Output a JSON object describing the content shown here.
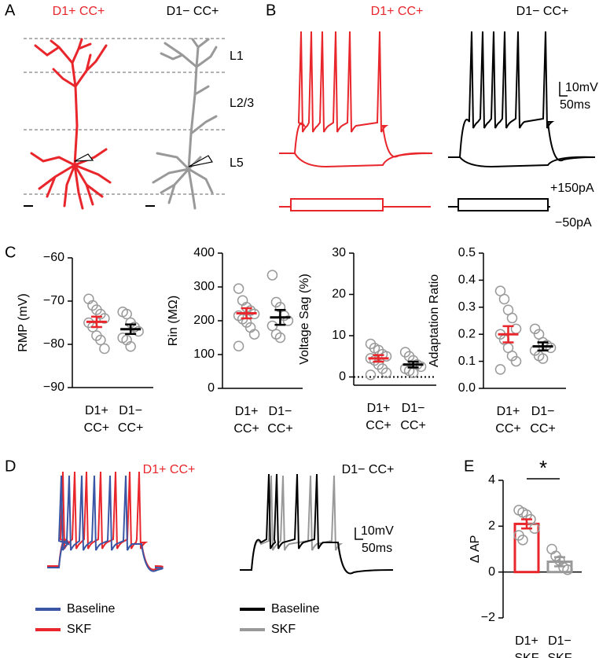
{
  "panel_labels": [
    "A",
    "B",
    "C",
    "D",
    "E"
  ],
  "panel_a": {
    "titles": [
      "D1+ CC+",
      "D1− CC+"
    ],
    "layers": [
      "L1",
      "L2/3",
      "L5"
    ]
  },
  "panel_b": {
    "titles": [
      "D1+ CC+",
      "D1− CC+"
    ],
    "scale_bar": [
      "10mV",
      "50ms"
    ],
    "currents": [
      "+150pA",
      "−50pA"
    ]
  },
  "panel_d": {
    "titles": [
      "D1+ CC+",
      "D1− CC+"
    ],
    "scale_bar": [
      "10mV",
      "50ms"
    ],
    "legends": [
      [
        {
          "name": "Baseline",
          "color": "#3a56a5"
        },
        {
          "name": "SKF",
          "color": "#e8262b"
        }
      ],
      [
        {
          "name": "Baseline",
          "color": "#000000"
        },
        {
          "name": "SKF",
          "color": "#999999"
        }
      ]
    ]
  },
  "chart_data": [
    {
      "type": "strip",
      "ylabel": "RMP (mV)",
      "ylim": [
        -90,
        -60
      ],
      "yticks": [
        {
          "value": -90,
          "label": "−90"
        },
        {
          "value": -80,
          "label": "−80"
        },
        {
          "value": -70,
          "label": "−70"
        },
        {
          "value": -60,
          "label": "−60"
        }
      ],
      "categories": [
        [
          "D1+",
          "CC+"
        ],
        [
          "D1−",
          "CC+"
        ]
      ],
      "groups": [
        {
          "color": "#e8262b",
          "point_color": "#999999",
          "values": [
            -69.5,
            -71,
            -72,
            -73,
            -74,
            -75,
            -76,
            -78,
            -79,
            -81
          ],
          "mean": -74.8,
          "sem": 1.2
        },
        {
          "color": "#000000",
          "point_color": "#999999",
          "values": [
            -72.5,
            -73,
            -75,
            -76,
            -77,
            -78.5,
            -79,
            -80.5
          ],
          "mean": -76.5,
          "sem": 1.1
        }
      ]
    },
    {
      "type": "strip",
      "ylabel": "Rin (MΩ)",
      "ylim": [
        0,
        400
      ],
      "yticks": [
        0,
        100,
        200,
        300,
        400
      ],
      "categories": [
        [
          "D1+",
          "CC+"
        ],
        [
          "D1−",
          "CC+"
        ]
      ],
      "groups": [
        {
          "color": "#e8262b",
          "point_color": "#999999",
          "values": [
            295,
            260,
            240,
            230,
            220,
            215,
            205,
            195,
            180,
            160,
            125
          ],
          "mean": 222,
          "sem": 15
        },
        {
          "color": "#000000",
          "point_color": "#999999",
          "values": [
            335,
            255,
            240,
            215,
            200,
            185,
            160,
            150
          ],
          "mean": 210,
          "sem": 22
        }
      ]
    },
    {
      "type": "strip",
      "ylabel": "Voltage Sag (%)",
      "ylim": [
        -2,
        30
      ],
      "yticks": [
        0,
        10,
        20,
        30
      ],
      "zero_line": true,
      "categories": [
        [
          "D1+",
          "CC+"
        ],
        [
          "D1−",
          "CC+"
        ]
      ],
      "groups": [
        {
          "color": "#e8262b",
          "point_color": "#999999",
          "values": [
            8,
            7,
            6.5,
            5.5,
            5,
            4.5,
            4,
            3,
            2,
            1,
            0.5
          ],
          "mean": 4.5,
          "sem": 0.8
        },
        {
          "color": "#000000",
          "point_color": "#999999",
          "values": [
            6,
            5,
            4,
            3,
            2.5,
            2,
            1.5,
            1
          ],
          "mean": 3,
          "sem": 0.7
        }
      ]
    },
    {
      "type": "strip",
      "ylabel": "Adaptation Ratio",
      "ylim": [
        0,
        0.5
      ],
      "yticks": [
        {
          "value": 0,
          "label": "0.0"
        },
        0.1,
        0.2,
        0.3,
        0.4,
        0.5
      ],
      "categories": [
        [
          "D1+",
          "CC+"
        ],
        [
          "D1−",
          "CC+"
        ]
      ],
      "groups": [
        {
          "color": "#e8262b",
          "point_color": "#999999",
          "values": [
            0.36,
            0.33,
            0.29,
            0.26,
            0.22,
            0.2,
            0.18,
            0.15,
            0.12,
            0.1,
            0.07
          ],
          "mean": 0.2,
          "sem": 0.03
        },
        {
          "color": "#000000",
          "point_color": "#999999",
          "values": [
            0.22,
            0.2,
            0.17,
            0.16,
            0.15,
            0.14,
            0.12,
            0.11
          ],
          "mean": 0.155,
          "sem": 0.015
        }
      ]
    },
    {
      "type": "bar",
      "ylabel": "Δ AP",
      "ylim": [
        -2,
        4
      ],
      "yticks": [
        {
          "value": -2,
          "label": "−2"
        },
        0,
        2,
        4
      ],
      "categories": [
        [
          "D1+",
          "SKF"
        ],
        [
          "D1−",
          "SKF"
        ]
      ],
      "annotation": "*",
      "groups": [
        {
          "color": "#e8262b",
          "point_color": "#999999",
          "values": [
            2.7,
            2.6,
            2.5,
            2.3,
            1.9,
            1.6,
            1.4
          ],
          "mean": 2.1,
          "sem": 0.2
        },
        {
          "color": "#999999",
          "point_color": "#999999",
          "values": [
            1.0,
            0.7,
            0.5,
            0.2,
            0.1
          ],
          "mean": 0.45,
          "sem": 0.2
        }
      ]
    }
  ]
}
